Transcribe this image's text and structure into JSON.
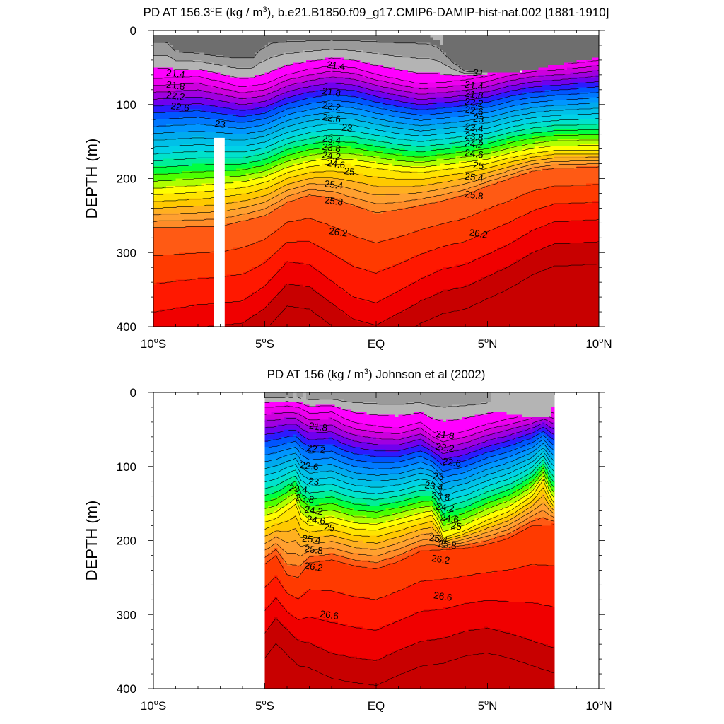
{
  "chart_data": [
    {
      "type": "contour",
      "title": "PD AT 156.3°E (kg / m³), b.e21.B1850.f09_g17.CMIP6-DAMIP-hist-nat.002 [1881-1910]",
      "title_parts": {
        "main": "PD AT 156.3",
        "deg": "o",
        "unit_start": "E (kg / m",
        "sup": "3",
        "rest": "), b.e21.B1850.f09_g17.CMIP6-DAMIP-hist-nat.002 [1881-1910]"
      },
      "ylabel": "DEPTH (m)",
      "xlabel": "",
      "xlim": [
        -10,
        10
      ],
      "ylim": [
        400,
        0
      ],
      "x_ticks": [
        {
          "value": -10,
          "num": "10",
          "deg": "o",
          "hem": "S"
        },
        {
          "value": -5,
          "num": "5",
          "deg": "o",
          "hem": "S"
        },
        {
          "value": 0,
          "num": "EQ",
          "deg": "",
          "hem": ""
        },
        {
          "value": 5,
          "num": "5",
          "deg": "o",
          "hem": "N"
        },
        {
          "value": 10,
          "num": "10",
          "deg": "o",
          "hem": "N"
        }
      ],
      "y_ticks": [
        "0",
        "100",
        "200",
        "300",
        "400"
      ],
      "data_x_range": [
        -10,
        10
      ],
      "missing_column": {
        "x": [
          -7.3,
          -6.8
        ],
        "depth": [
          145,
          400
        ]
      },
      "contour_labels": [
        {
          "text": "21.4",
          "x": -9.0,
          "depth": 58
        },
        {
          "text": "21.8",
          "x": -9.0,
          "depth": 74
        },
        {
          "text": "22.2",
          "x": -9.0,
          "depth": 88
        },
        {
          "text": "22.6",
          "x": -8.8,
          "depth": 103
        },
        {
          "text": "23",
          "x": -7.0,
          "depth": 126
        },
        {
          "text": "21.4",
          "x": -1.8,
          "depth": 47
        },
        {
          "text": "21.8",
          "x": -2.0,
          "depth": 83
        },
        {
          "text": "22.2",
          "x": -2.0,
          "depth": 102
        },
        {
          "text": "22.6",
          "x": -2.0,
          "depth": 118
        },
        {
          "text": "23",
          "x": -1.3,
          "depth": 131
        },
        {
          "text": "23.4",
          "x": -2.0,
          "depth": 147
        },
        {
          "text": "23.8",
          "x": -2.0,
          "depth": 158
        },
        {
          "text": "24.2",
          "x": -2.0,
          "depth": 169
        },
        {
          "text": "24.6",
          "x": -1.8,
          "depth": 180
        },
        {
          "text": "25",
          "x": -1.2,
          "depth": 190
        },
        {
          "text": "25.4",
          "x": -1.9,
          "depth": 208
        },
        {
          "text": "25.8",
          "x": -1.9,
          "depth": 230
        },
        {
          "text": "26.2",
          "x": -1.7,
          "depth": 272
        },
        {
          "text": "21",
          "x": 4.6,
          "depth": 57
        },
        {
          "text": "21.4",
          "x": 4.4,
          "depth": 74
        },
        {
          "text": "21.8",
          "x": 4.4,
          "depth": 86
        },
        {
          "text": "22.2",
          "x": 4.4,
          "depth": 97
        },
        {
          "text": "22.6",
          "x": 4.4,
          "depth": 108
        },
        {
          "text": "23",
          "x": 4.6,
          "depth": 119
        },
        {
          "text": "23.4",
          "x": 4.4,
          "depth": 131
        },
        {
          "text": "23.8",
          "x": 4.4,
          "depth": 143
        },
        {
          "text": "24.2",
          "x": 4.4,
          "depth": 153
        },
        {
          "text": "24.6",
          "x": 4.4,
          "depth": 166
        },
        {
          "text": "25",
          "x": 4.6,
          "depth": 182
        },
        {
          "text": "25.4",
          "x": 4.4,
          "depth": 198
        },
        {
          "text": "25.8",
          "x": 4.4,
          "depth": 222
        },
        {
          "text": "26.2",
          "x": 4.6,
          "depth": 274
        }
      ],
      "mask_label": "",
      "note": ""
    },
    {
      "type": "contour",
      "title": "PD AT 156 (kg / m³) Johnson et al (2002)",
      "title_parts": {
        "main": "PD AT 156",
        "deg": "",
        "unit_start": " (kg / m",
        "sup": "3",
        "rest": ") Johnson et al (2002)"
      },
      "ylabel": "DEPTH (m)",
      "xlabel": "",
      "xlim": [
        -10,
        10
      ],
      "ylim": [
        400,
        0
      ],
      "x_ticks": [
        {
          "value": -10,
          "num": "10",
          "deg": "o",
          "hem": "S"
        },
        {
          "value": -5,
          "num": "5",
          "deg": "o",
          "hem": "S"
        },
        {
          "value": 0,
          "num": "EQ",
          "deg": "",
          "hem": ""
        },
        {
          "value": 5,
          "num": "5",
          "deg": "o",
          "hem": "N"
        },
        {
          "value": 10,
          "num": "10",
          "deg": "o",
          "hem": "N"
        }
      ],
      "y_ticks": [
        "0",
        "100",
        "200",
        "300",
        "400"
      ],
      "data_x_range": [
        -5,
        8
      ],
      "contour_labels": [
        {
          "text": "21.8",
          "x": -2.6,
          "depth": 46
        },
        {
          "text": "22.2",
          "x": -2.7,
          "depth": 76
        },
        {
          "text": "22.6",
          "x": -3.0,
          "depth": 99
        },
        {
          "text": "23",
          "x": -2.8,
          "depth": 120
        },
        {
          "text": "23.4",
          "x": -3.5,
          "depth": 130
        },
        {
          "text": "23.8",
          "x": -3.2,
          "depth": 143
        },
        {
          "text": "24.2",
          "x": -2.8,
          "depth": 159
        },
        {
          "text": "24.6",
          "x": -2.7,
          "depth": 172
        },
        {
          "text": "25",
          "x": -2.1,
          "depth": 182
        },
        {
          "text": "25.4",
          "x": -2.9,
          "depth": 198
        },
        {
          "text": "25.8",
          "x": -2.8,
          "depth": 212
        },
        {
          "text": "26.2",
          "x": -2.8,
          "depth": 235
        },
        {
          "text": "26.6",
          "x": -2.1,
          "depth": 300
        },
        {
          "text": "21.8",
          "x": 3.1,
          "depth": 57
        },
        {
          "text": "22.2",
          "x": 3.1,
          "depth": 74
        },
        {
          "text": "22.6",
          "x": 3.4,
          "depth": 94
        },
        {
          "text": "23",
          "x": 2.8,
          "depth": 113
        },
        {
          "text": "23.4",
          "x": 2.6,
          "depth": 126
        },
        {
          "text": "23.8",
          "x": 2.9,
          "depth": 140
        },
        {
          "text": "24.2",
          "x": 3.1,
          "depth": 155
        },
        {
          "text": "24.6",
          "x": 3.3,
          "depth": 170
        },
        {
          "text": "25",
          "x": 3.6,
          "depth": 180
        },
        {
          "text": "25.4",
          "x": 2.8,
          "depth": 197
        },
        {
          "text": "25.8",
          "x": 3.2,
          "depth": 205
        },
        {
          "text": "26.2",
          "x": 2.9,
          "depth": 225
        },
        {
          "text": "26.6",
          "x": 3.0,
          "depth": 275
        }
      ]
    }
  ],
  "contour_levels": [
    21,
    21.2,
    21.4,
    21.6,
    21.8,
    22,
    22.2,
    22.4,
    22.6,
    22.8,
    23,
    23.2,
    23.4,
    23.6,
    23.8,
    24,
    24.2,
    24.4,
    24.6,
    24.8,
    25,
    25.2,
    25.4,
    25.6,
    25.8,
    26,
    26.2,
    26.4,
    26.6,
    26.8,
    27
  ],
  "colors": {
    "level_fill": [
      "#6e6e6e",
      "#9a9a9a",
      "#b4b4b4",
      "#ff00ff",
      "#ee00ee",
      "#cc00dd",
      "#a000e0",
      "#7000ee",
      "#2b1bff",
      "#0055ff",
      "#0078ff",
      "#0096ff",
      "#00aaee",
      "#00c0e8",
      "#00d2e6",
      "#00e2cc",
      "#00ee99",
      "#00ff40",
      "#4cff00",
      "#b0ff00",
      "#ffff00",
      "#ffe400",
      "#ffc900",
      "#ffb020",
      "#ffa030",
      "#ff8c28",
      "#ff5a14",
      "#ff3a00",
      "#ff1800",
      "#f00000",
      "#c80000"
    ],
    "land_mask": "#b4b4b4",
    "contour_line": "#000000",
    "frame": "#000000"
  }
}
